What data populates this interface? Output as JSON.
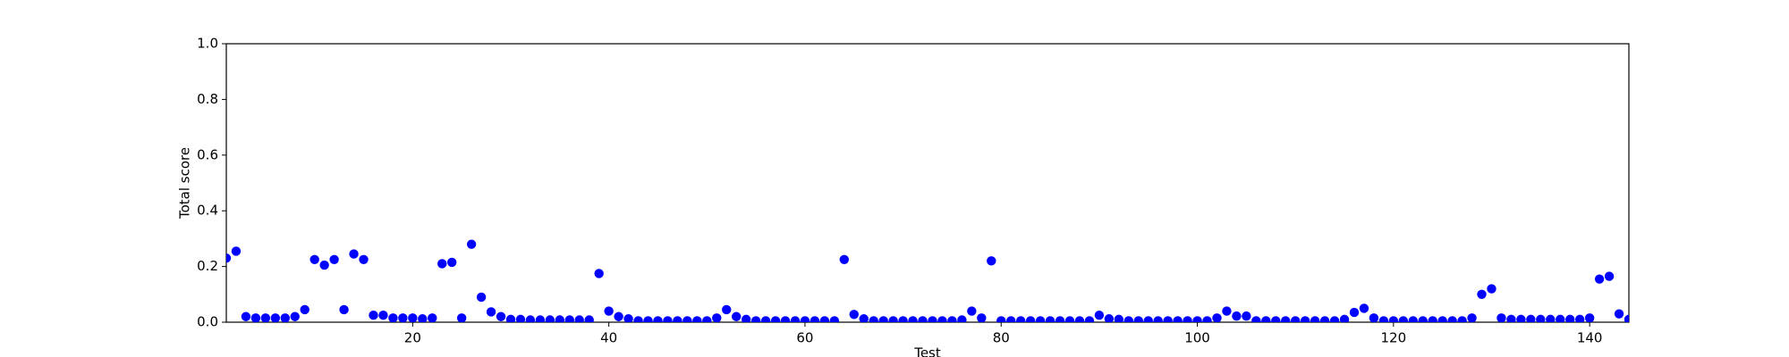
{
  "chart_data": {
    "type": "scatter",
    "xlabel": "Test",
    "ylabel": "Total score",
    "color": "#0000ff",
    "x": [
      1,
      2,
      3,
      4,
      5,
      6,
      7,
      8,
      9,
      10,
      11,
      12,
      13,
      14,
      15,
      16,
      17,
      18,
      19,
      20,
      21,
      22,
      23,
      24,
      25,
      26,
      27,
      28,
      29,
      30,
      31,
      32,
      33,
      34,
      35,
      36,
      37,
      38,
      39,
      40,
      41,
      42,
      43,
      44,
      45,
      46,
      47,
      48,
      49,
      50,
      51,
      52,
      53,
      54,
      55,
      56,
      57,
      58,
      59,
      60,
      61,
      62,
      63,
      64,
      65,
      66,
      67,
      68,
      69,
      70,
      71,
      72,
      73,
      74,
      75,
      76,
      77,
      78,
      79,
      80,
      81,
      82,
      83,
      84,
      85,
      86,
      87,
      88,
      89,
      90,
      91,
      92,
      93,
      94,
      95,
      96,
      97,
      98,
      99,
      100,
      101,
      102,
      103,
      104,
      105,
      106,
      107,
      108,
      109,
      110,
      111,
      112,
      113,
      114,
      115,
      116,
      117,
      118,
      119,
      120,
      121,
      122,
      123,
      124,
      125,
      126,
      127,
      128,
      129,
      130,
      131,
      132,
      133,
      134,
      135,
      136,
      137,
      138,
      139,
      140,
      141,
      142,
      143,
      144
    ],
    "values": [
      0.23,
      0.255,
      0.02,
      0.015,
      0.015,
      0.015,
      0.015,
      0.02,
      0.045,
      0.225,
      0.205,
      0.225,
      0.045,
      0.245,
      0.225,
      0.025,
      0.025,
      0.015,
      0.015,
      0.015,
      0.012,
      0.015,
      0.21,
      0.215,
      0.015,
      0.28,
      0.09,
      0.037,
      0.02,
      0.01,
      0.01,
      0.008,
      0.008,
      0.008,
      0.008,
      0.008,
      0.008,
      0.008,
      0.175,
      0.04,
      0.02,
      0.012,
      0.005,
      0.005,
      0.005,
      0.005,
      0.005,
      0.005,
      0.005,
      0.005,
      0.015,
      0.045,
      0.02,
      0.01,
      0.005,
      0.005,
      0.005,
      0.005,
      0.005,
      0.005,
      0.005,
      0.005,
      0.005,
      0.225,
      0.028,
      0.012,
      0.005,
      0.005,
      0.005,
      0.005,
      0.005,
      0.005,
      0.005,
      0.005,
      0.005,
      0.008,
      0.04,
      0.015,
      0.22,
      0.005,
      0.005,
      0.005,
      0.005,
      0.005,
      0.005,
      0.005,
      0.005,
      0.005,
      0.005,
      0.025,
      0.012,
      0.01,
      0.005,
      0.005,
      0.005,
      0.005,
      0.005,
      0.005,
      0.005,
      0.005,
      0.005,
      0.015,
      0.04,
      0.022,
      0.022,
      0.005,
      0.005,
      0.005,
      0.005,
      0.005,
      0.005,
      0.005,
      0.005,
      0.005,
      0.01,
      0.035,
      0.05,
      0.015,
      0.005,
      0.005,
      0.005,
      0.005,
      0.005,
      0.005,
      0.005,
      0.005,
      0.005,
      0.015,
      0.1,
      0.12,
      0.015,
      0.01,
      0.01,
      0.01,
      0.01,
      0.01,
      0.01,
      0.01,
      0.01,
      0.015,
      0.155,
      0.165,
      0.03,
      0.01
    ],
    "xlim": [
      1,
      144
    ],
    "ylim": [
      0,
      1
    ],
    "xticks": [
      20,
      40,
      60,
      80,
      100,
      120,
      140
    ],
    "yticks": [
      {
        "value": 0,
        "label": "0.0"
      },
      0.2,
      0.4,
      0.6,
      0.8,
      {
        "value": 1,
        "label": "1.0"
      }
    ]
  }
}
